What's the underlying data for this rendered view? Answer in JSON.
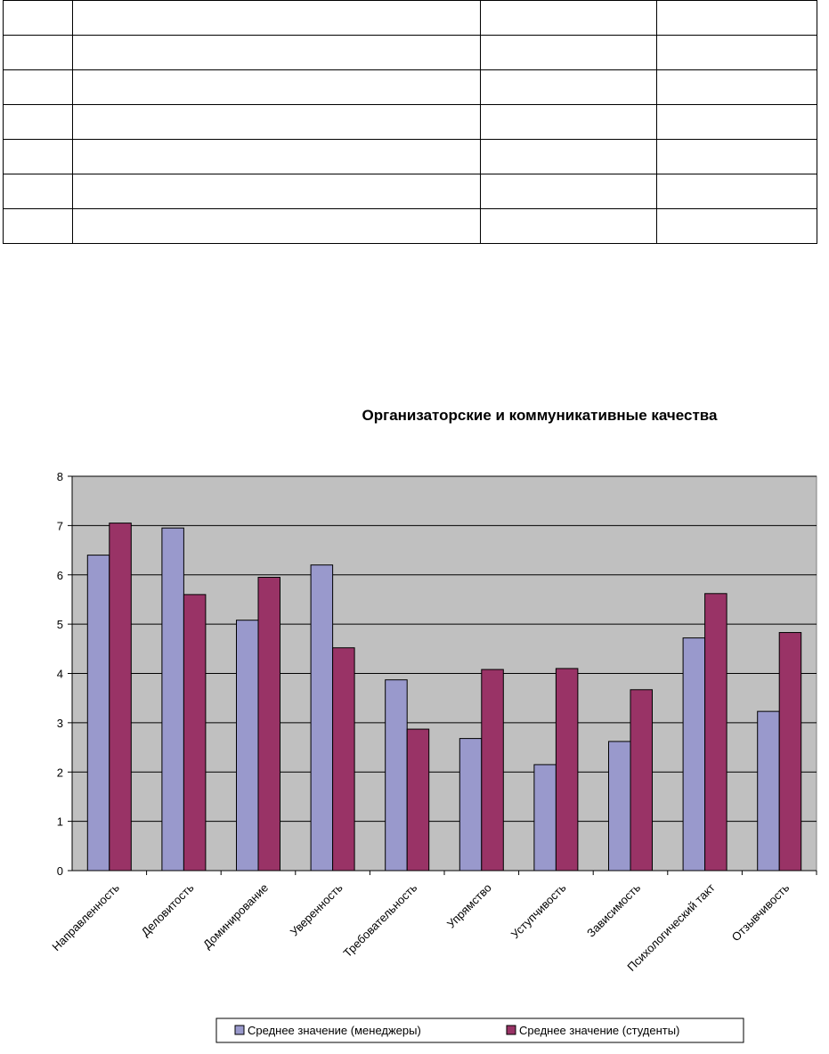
{
  "chart_data": {
    "type": "bar",
    "title": "Организаторские и коммуникативные качества",
    "categories": [
      "Направленность",
      "Деловитость",
      "Доминирование",
      "Уверенность",
      "Требовательность",
      "Упрямство",
      "Уступчивость",
      "Зависимость",
      "Психологический такт",
      "Отзывчивость"
    ],
    "series": [
      {
        "name": "Среднее значение (менеджеры)",
        "color": "#9999cc",
        "values": [
          6.4,
          6.95,
          5.08,
          6.2,
          3.87,
          2.68,
          2.15,
          2.62,
          4.72,
          3.23
        ]
      },
      {
        "name": "Среднее значение (студенты)",
        "color": "#993366",
        "values": [
          7.05,
          5.6,
          5.95,
          4.52,
          2.87,
          4.08,
          4.1,
          3.67,
          5.62,
          4.83
        ]
      }
    ],
    "ylim": [
      0,
      8
    ],
    "yticks": [
      0,
      1,
      2,
      3,
      4,
      5,
      6,
      7,
      8
    ],
    "grid": true,
    "plot_background": "#c0c0c0",
    "legend_position": "bottom"
  }
}
